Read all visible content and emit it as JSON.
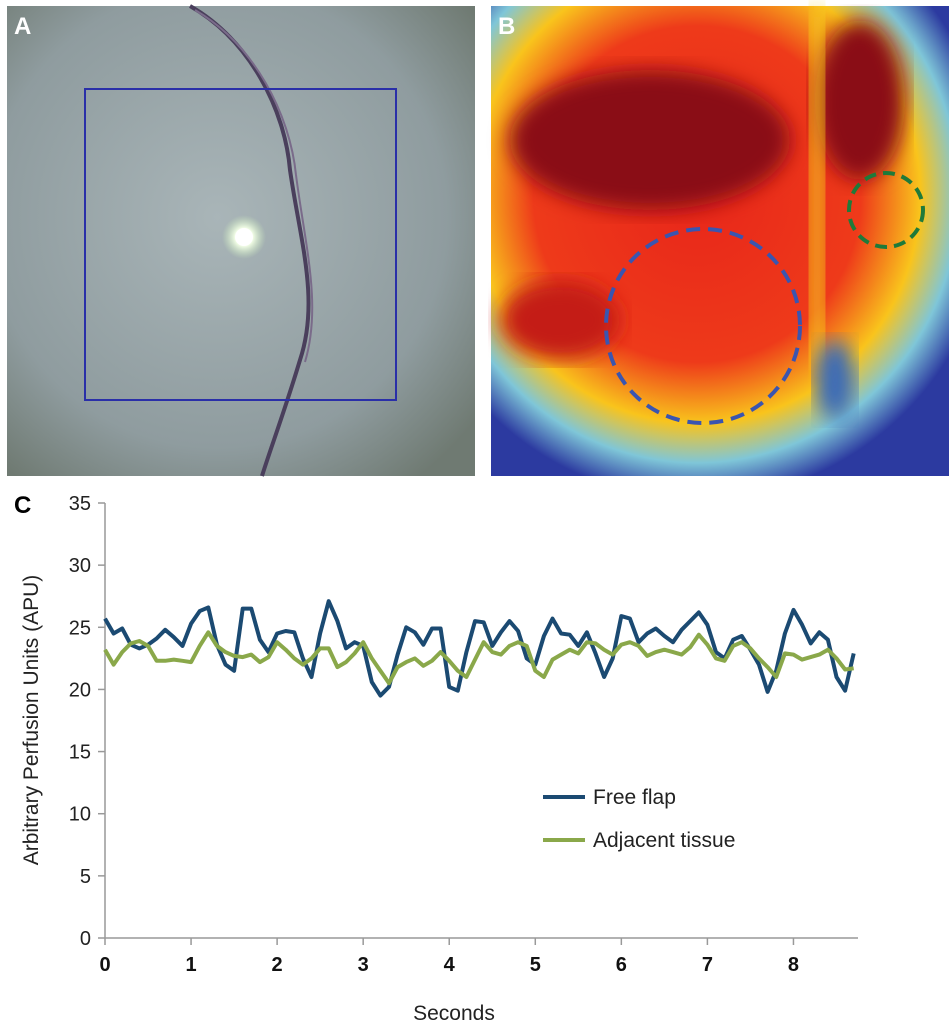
{
  "panel_labels": [
    "A",
    "B",
    "C"
  ],
  "chart_data": {
    "type": "line",
    "xlabel": "Seconds",
    "ylabel": "Arbitrary Perfusion Units (APU)",
    "x": [
      0,
      0.1,
      0.2,
      0.3,
      0.4,
      0.5,
      0.6,
      0.7,
      0.8,
      0.9,
      1,
      1.1,
      1.2,
      1.3,
      1.4,
      1.5,
      1.6,
      1.7,
      1.8,
      1.9,
      2,
      2.1,
      2.2,
      2.3,
      2.4,
      2.5,
      2.6,
      2.7,
      2.8,
      2.9,
      3,
      3.1,
      3.2,
      3.3,
      3.4,
      3.5,
      3.6,
      3.7,
      3.8,
      3.9,
      4,
      4.1,
      4.2,
      4.3,
      4.4,
      4.5,
      4.6,
      4.7,
      4.8,
      4.9,
      5,
      5.1,
      5.2,
      5.3,
      5.4,
      5.5,
      5.6,
      5.7,
      5.8,
      5.9,
      6,
      6.1,
      6.2,
      6.3,
      6.4,
      6.5,
      6.6,
      6.7,
      6.8,
      6.9,
      7,
      7.1,
      7.2,
      7.3,
      7.4,
      7.5,
      7.6,
      7.7,
      7.8,
      7.9,
      8,
      8.1,
      8.2,
      8.3,
      8.4,
      8.5,
      8.6,
      8.7
    ],
    "series": [
      {
        "name": "Free flap",
        "color": "#1b4a72",
        "values": [
          25.7,
          24.5,
          24.9,
          23.6,
          23.3,
          23.6,
          24.1,
          24.8,
          24.2,
          23.5,
          25.3,
          26.3,
          26.6,
          23.6,
          22.0,
          21.5,
          26.5,
          26.5,
          24.0,
          23.0,
          24.5,
          24.7,
          24.6,
          22.5,
          21.0,
          24.5,
          27.1,
          25.5,
          23.3,
          23.8,
          23.5,
          20.6,
          19.5,
          20.2,
          22.8,
          25.0,
          24.6,
          23.6,
          24.9,
          24.9,
          20.2,
          19.9,
          23.0,
          25.5,
          25.4,
          23.5,
          24.6,
          25.5,
          24.7,
          22.5,
          22.0,
          24.3,
          25.7,
          24.5,
          24.4,
          23.5,
          24.6,
          22.9,
          21.0,
          22.5,
          25.9,
          25.7,
          23.8,
          24.5,
          24.9,
          24.3,
          23.8,
          24.8,
          25.5,
          26.2,
          25.2,
          23.0,
          22.5,
          24.0,
          24.3,
          23.2,
          22.0,
          19.8,
          21.5,
          24.5,
          26.4,
          25.2,
          23.7,
          24.6,
          24.0,
          21.0,
          19.9,
          22.9
        ]
      },
      {
        "name": "Adjacent tissue",
        "color": "#8aa84a",
        "values": [
          23.2,
          22.0,
          23.0,
          23.7,
          23.9,
          23.5,
          22.3,
          22.3,
          22.4,
          22.3,
          22.2,
          23.5,
          24.6,
          23.5,
          23.0,
          22.7,
          22.6,
          22.8,
          22.2,
          22.6,
          23.8,
          23.2,
          22.5,
          22.0,
          22.5,
          23.3,
          23.3,
          21.8,
          22.2,
          22.9,
          23.8,
          22.5,
          21.5,
          20.5,
          21.8,
          22.2,
          22.5,
          21.9,
          22.3,
          23.0,
          22.3,
          21.5,
          21.0,
          22.4,
          23.8,
          23.0,
          22.8,
          23.5,
          23.8,
          23.5,
          21.5,
          21.0,
          22.4,
          22.8,
          23.2,
          22.9,
          23.8,
          23.7,
          23.2,
          22.8,
          23.6,
          23.8,
          23.5,
          22.7,
          23.0,
          23.2,
          23.0,
          22.8,
          23.4,
          24.4,
          23.6,
          22.5,
          22.3,
          23.5,
          23.8,
          23.3,
          22.5,
          21.8,
          21.0,
          22.9,
          22.8,
          22.4,
          22.6,
          22.8,
          23.2,
          22.5,
          21.6,
          21.7
        ]
      }
    ],
    "xlim": [
      0,
      8.75
    ],
    "ylim": [
      0,
      35
    ],
    "xticks": [
      0,
      1,
      2,
      3,
      4,
      5,
      6,
      7,
      8
    ],
    "yticks": [
      0,
      5,
      10,
      15,
      20,
      25,
      30,
      35
    ],
    "grid": false,
    "legend": "lower right"
  }
}
